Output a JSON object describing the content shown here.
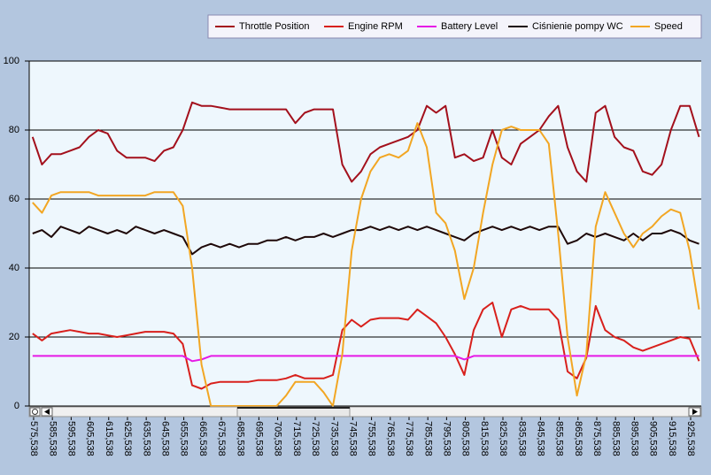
{
  "chart_data": {
    "type": "line",
    "x": [
      575,
      580,
      585,
      590,
      595,
      600,
      605,
      610,
      615,
      620,
      625,
      630,
      635,
      640,
      645,
      650,
      655,
      660,
      665,
      670,
      675,
      680,
      685,
      690,
      695,
      700,
      705,
      710,
      715,
      720,
      725,
      730,
      735,
      740,
      745,
      750,
      755,
      760,
      765,
      770,
      775,
      780,
      785,
      790,
      795,
      800,
      805,
      810,
      815,
      820,
      825,
      830,
      835,
      840,
      845,
      850,
      855,
      860,
      865,
      870,
      875,
      880,
      885,
      890,
      895,
      900,
      905,
      910,
      915,
      920,
      925,
      930
    ],
    "series": [
      {
        "name": "Throttle Position",
        "color": "#a3101c",
        "values": [
          78,
          70,
          73,
          73,
          74,
          75,
          78,
          80,
          79,
          74,
          72,
          72,
          72,
          71,
          74,
          75,
          80,
          88,
          87,
          87,
          86.5,
          86,
          86,
          86,
          86,
          86,
          86,
          86,
          82,
          85,
          86,
          86,
          86,
          70,
          65,
          68,
          73,
          75,
          76,
          77,
          78,
          80,
          87,
          85,
          87,
          72,
          73,
          71,
          72,
          80,
          72,
          70,
          76,
          78,
          80,
          84,
          87,
          75,
          68,
          65,
          85,
          87,
          78,
          75,
          74,
          68,
          67,
          70,
          80,
          87,
          87,
          78
        ]
      },
      {
        "name": "Engine RPM",
        "color": "#d8201c",
        "values": [
          21,
          19,
          21,
          21.5,
          22,
          21.5,
          21,
          21,
          20.5,
          20,
          20.5,
          21,
          21.5,
          21.5,
          21.5,
          21,
          18,
          6,
          5,
          6.5,
          7,
          7,
          7,
          7,
          7.5,
          7.5,
          7.5,
          8,
          9,
          8,
          8,
          8,
          9,
          22,
          25,
          23,
          25,
          25.5,
          25.5,
          25.5,
          25,
          28,
          26,
          24,
          20,
          15,
          9,
          22,
          28,
          30,
          20,
          28,
          29,
          28,
          28,
          28,
          25,
          10,
          8,
          14,
          29,
          22,
          20,
          19,
          17,
          16,
          17,
          18,
          19,
          20,
          19.5,
          13
        ]
      },
      {
        "name": "Battery Level",
        "color": "#e619e6",
        "values": [
          14.5,
          14.5,
          14.5,
          14.5,
          14.5,
          14.5,
          14.5,
          14.5,
          14.5,
          14.5,
          14.5,
          14.5,
          14.5,
          14.5,
          14.5,
          14.5,
          14.5,
          13,
          13.5,
          14.5,
          14.5,
          14.5,
          14.5,
          14.5,
          14.5,
          14.5,
          14.5,
          14.5,
          14.5,
          14.5,
          14.5,
          14.5,
          14.5,
          14.5,
          14.5,
          14.5,
          14.5,
          14.5,
          14.5,
          14.5,
          14.5,
          14.5,
          14.5,
          14.5,
          14.5,
          14.5,
          13.5,
          14.5,
          14.5,
          14.5,
          14.5,
          14.5,
          14.5,
          14.5,
          14.5,
          14.5,
          14.5,
          14.5,
          14.5,
          14.5,
          14.5,
          14.5,
          14.5,
          14.5,
          14.5,
          14.5,
          14.5,
          14.5,
          14.5,
          14.5,
          14.5,
          14.5
        ]
      },
      {
        "name": "Ciśnienie pompy WC",
        "color": "#1e0808",
        "values": [
          50,
          51,
          49,
          52,
          51,
          50,
          52,
          51,
          50,
          51,
          50,
          52,
          51,
          50,
          51,
          50,
          49,
          44,
          46,
          47,
          46,
          47,
          46,
          47,
          47,
          48,
          48,
          49,
          48,
          49,
          49,
          50,
          49,
          50,
          51,
          51,
          52,
          51,
          52,
          51,
          52,
          51,
          52,
          51,
          50,
          49,
          48,
          50,
          51,
          52,
          51,
          52,
          51,
          52,
          51,
          52,
          52,
          47,
          48,
          50,
          49,
          50,
          49,
          48,
          50,
          48,
          50,
          50,
          51,
          50,
          48,
          47
        ]
      },
      {
        "name": "Speed",
        "color": "#f2a623",
        "values": [
          59,
          56,
          61,
          62,
          62,
          62,
          62,
          61,
          61,
          61,
          61,
          61,
          61,
          62,
          62,
          62,
          58,
          40,
          12,
          0,
          0,
          0,
          0,
          0,
          0,
          0,
          0,
          3,
          7,
          7,
          7,
          4,
          0,
          15,
          45,
          60,
          68,
          72,
          73,
          72,
          74,
          82,
          75,
          56,
          53,
          45,
          31,
          40,
          56,
          70,
          80,
          81,
          80,
          80,
          80,
          76,
          50,
          20,
          3,
          15,
          52,
          62,
          56,
          50,
          46,
          50,
          52,
          55,
          57,
          56,
          45,
          28
        ]
      }
    ],
    "xlim": [
      573.2,
      931.2
    ],
    "xticks": [
      {
        "value": 575.538,
        "label": "575,538"
      },
      {
        "value": 585.538,
        "label": "585,538"
      },
      {
        "value": 595.538,
        "label": "595,538"
      },
      {
        "value": 605.538,
        "label": "605,538"
      },
      {
        "value": 615.538,
        "label": "615,538"
      },
      {
        "value": 625.538,
        "label": "625,538"
      },
      {
        "value": 635.538,
        "label": "635,538"
      },
      {
        "value": 645.538,
        "label": "645,538"
      },
      {
        "value": 655.538,
        "label": "655,538"
      },
      {
        "value": 665.538,
        "label": "665,538"
      },
      {
        "value": 675.538,
        "label": "675,538"
      },
      {
        "value": 685.538,
        "label": "685,538"
      },
      {
        "value": 695.538,
        "label": "695,538"
      },
      {
        "value": 705.538,
        "label": "705,538"
      },
      {
        "value": 715.538,
        "label": "715,538"
      },
      {
        "value": 725.538,
        "label": "725,538"
      },
      {
        "value": 735.538,
        "label": "735,538"
      },
      {
        "value": 745.538,
        "label": "745,538"
      },
      {
        "value": 755.538,
        "label": "755,538"
      },
      {
        "value": 765.538,
        "label": "765,538"
      },
      {
        "value": 775.538,
        "label": "775,538"
      },
      {
        "value": 785.538,
        "label": "785,538"
      },
      {
        "value": 795.538,
        "label": "795,538"
      },
      {
        "value": 805.538,
        "label": "805,538"
      },
      {
        "value": 815.538,
        "label": "815,538"
      },
      {
        "value": 825.538,
        "label": "825,538"
      },
      {
        "value": 835.538,
        "label": "835,538"
      },
      {
        "value": 845.538,
        "label": "845,538"
      },
      {
        "value": 855.538,
        "label": "855,538"
      },
      {
        "value": 865.538,
        "label": "865,538"
      },
      {
        "value": 875.538,
        "label": "875,538"
      },
      {
        "value": 885.538,
        "label": "885,538"
      },
      {
        "value": 895.538,
        "label": "895,538"
      },
      {
        "value": 905.538,
        "label": "905,538"
      },
      {
        "value": 915.538,
        "label": "915,538"
      },
      {
        "value": 925.538,
        "label": "925,538"
      }
    ],
    "ylim": [
      0,
      100
    ],
    "yticks": [
      0,
      20,
      40,
      60,
      80,
      100
    ],
    "grid": true,
    "legend": "top-right"
  }
}
